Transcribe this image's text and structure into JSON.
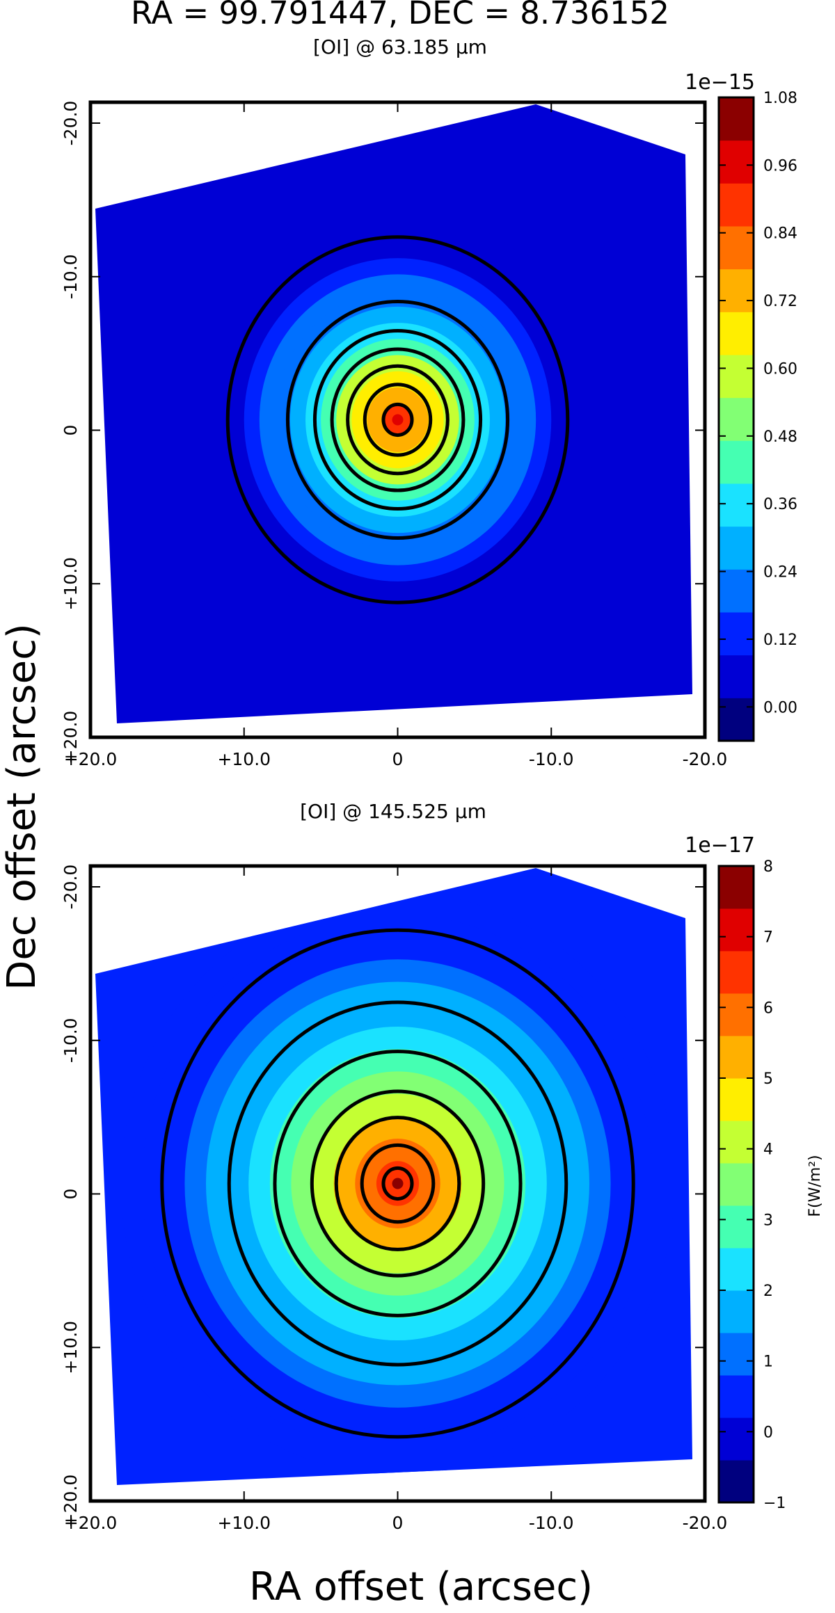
{
  "figure": {
    "title": "RA = 99.791447, DEC = 8.736152",
    "xlabel": "RA offset (arcsec)",
    "ylabel": "Dec offset (arcsec)",
    "colorbar_label": "F(W/m²)"
  },
  "chart_data": [
    {
      "type": "heatmap",
      "subtitle": "[OI] @ 63.185 μm",
      "x_ticks": [
        "+20.0",
        "+10.0",
        "0",
        "-10.0",
        "-20.0"
      ],
      "y_ticks": [
        "-20.0",
        "-10.0",
        "0",
        "+10.0",
        "+20.0"
      ],
      "xlim": [
        20,
        -20
      ],
      "ylim": [
        -20,
        20
      ],
      "colorbar": {
        "multiplier": "1e−15",
        "range": [
          -0.06,
          1.08
        ],
        "tick_values": [
          0.0,
          0.12,
          0.24,
          0.36,
          0.48,
          0.6,
          0.72,
          0.84,
          0.96,
          1.08
        ],
        "tick_labels": [
          "0.00",
          "0.12",
          "0.24",
          "0.36",
          "0.48",
          "0.60",
          "0.72",
          "0.84",
          "0.96",
          "1.08"
        ]
      },
      "source": {
        "ra_offset": 0,
        "dec_offset": 0,
        "peak": 1.0,
        "background": 0.02
      },
      "contours_black_radii_arcsec": [
        1.0,
        2.3,
        3.5,
        4.6,
        5.8,
        7.7,
        11.9
      ]
    },
    {
      "type": "heatmap",
      "subtitle": "[OI] @ 145.525 μm",
      "x_ticks": [
        "+20.0",
        "+10.0",
        "0",
        "-10.0",
        "-20.0"
      ],
      "y_ticks": [
        "-20.0",
        "-10.0",
        "0",
        "+10.0",
        "+20.0"
      ],
      "xlim": [
        20,
        -20
      ],
      "ylim": [
        -20,
        20
      ],
      "colorbar": {
        "multiplier": "1e−17",
        "range": [
          -1,
          8
        ],
        "tick_values": [
          -1,
          0,
          1,
          2,
          3,
          4,
          5,
          6,
          7,
          8
        ],
        "tick_labels": [
          "−1",
          "0",
          "1",
          "2",
          "3",
          "4",
          "5",
          "6",
          "7",
          "8"
        ]
      },
      "source": {
        "ra_offset": 0,
        "dec_offset": 0,
        "peak": 7.5,
        "background": 0.4
      },
      "contours_black_radii_arcsec": [
        1.0,
        2.5,
        4.3,
        6.0,
        8.6,
        11.8,
        16.5
      ]
    }
  ],
  "colors": {
    "colormap": [
      "#00007f",
      "#0000d5",
      "#0022ff",
      "#0070ff",
      "#00b0ff",
      "#1ae2ff",
      "#45ffb2",
      "#82ff74",
      "#c4ff33",
      "#ffee00",
      "#ffb000",
      "#ff7000",
      "#ff3300",
      "#e00000",
      "#8b0000"
    ],
    "contour": "#000000",
    "axes": "#000000"
  }
}
